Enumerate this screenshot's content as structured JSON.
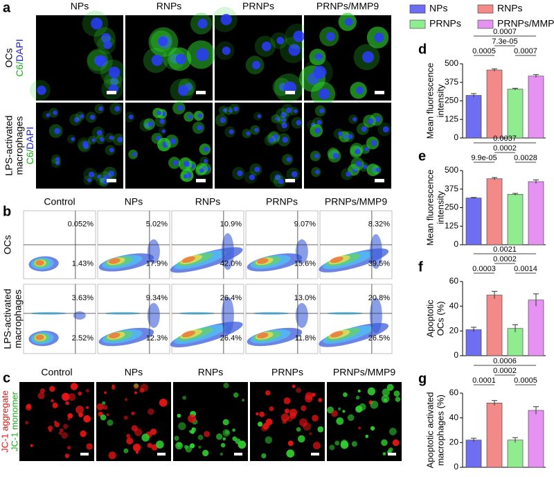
{
  "legend": {
    "items": [
      {
        "name": "NPs",
        "color": "#6e6ef2"
      },
      {
        "name": "RNPs",
        "color": "#f28a8a"
      },
      {
        "name": "PRNPs",
        "color": "#8fec8f"
      },
      {
        "name": "PRNPs/MMP9",
        "color": "#e592f2"
      }
    ]
  },
  "panel_a": {
    "label": "a",
    "columns": [
      "NPs",
      "RNPs",
      "PRNPs",
      "PRNPs/MMP9"
    ],
    "rows": [
      {
        "lines": [
          "OCs"
        ],
        "stain": {
          "green": "C6/",
          "blue": "DAPI"
        }
      },
      {
        "lines": [
          "LPS-activated",
          "macrophages"
        ],
        "stain": {
          "green": "C6/",
          "blue": "DAPI"
        }
      }
    ]
  },
  "panel_b": {
    "label": "b",
    "columns": [
      "Control",
      "NPs",
      "RNPs",
      "PRNPs",
      "PRNPs/MMP9"
    ],
    "rows": [
      {
        "lines": [
          "OCs"
        ],
        "plots": [
          {
            "q2": "0.052%",
            "q3": "1.43%"
          },
          {
            "q2": "5.02%",
            "q3": "17.9%"
          },
          {
            "q2": "10.9%",
            "q3": "42.0%"
          },
          {
            "q2": "9.07%",
            "q3": "15.6%"
          },
          {
            "q2": "8.32%",
            "q3": "39.5%"
          }
        ]
      },
      {
        "lines": [
          "LPS-activated",
          "macrophages"
        ],
        "plots": [
          {
            "q2": "3.63%",
            "q3": "2.52%"
          },
          {
            "q2": "9.34%",
            "q3": "12.3%"
          },
          {
            "q2": "26.4%",
            "q3": "26.4%"
          },
          {
            "q2": "13.0%",
            "q3": "11.8%"
          },
          {
            "q2": "20.8%",
            "q3": "26.5%"
          }
        ]
      }
    ]
  },
  "panel_c": {
    "label": "c",
    "columns": [
      "Control",
      "NPs",
      "RNPs",
      "PRNPs",
      "PRNPs/MMP9"
    ],
    "ylabel": {
      "red": "JC-1 aggregate",
      "green": "JC-1 monomer"
    }
  },
  "chart_data": [
    {
      "type": "bar",
      "panel": "d",
      "ylabel": [
        "Mean fluorescence",
        "intensity"
      ],
      "values": [
        287,
        458,
        329,
        417
      ],
      "errors": [
        12,
        8,
        6,
        10
      ],
      "ylim": [
        0,
        500
      ],
      "yticks": [
        0,
        125,
        250,
        375,
        500
      ],
      "comparisons": [
        {
          "bars": [
            0,
            1
          ],
          "label": "0.0005"
        },
        {
          "bars": [
            2,
            3
          ],
          "label": "0.0007"
        },
        {
          "bars": [
            1,
            2
          ],
          "label": "7.3e-05"
        },
        {
          "bars": [
            0,
            3
          ],
          "label": "0.0007"
        }
      ]
    },
    {
      "type": "bar",
      "panel": "e",
      "ylabel": [
        "Mean fluorescence",
        "intensity"
      ],
      "values": [
        315,
        445,
        340,
        425
      ],
      "errors": [
        4,
        8,
        6,
        12
      ],
      "ylim": [
        0,
        500
      ],
      "yticks": [
        0,
        125,
        250,
        375,
        500
      ],
      "comparisons": [
        {
          "bars": [
            0,
            1
          ],
          "label": "9.9e-05"
        },
        {
          "bars": [
            2,
            3
          ],
          "label": "0.0028"
        },
        {
          "bars": [
            1,
            2
          ],
          "label": "0.0002"
        },
        {
          "bars": [
            0,
            3
          ],
          "label": "0.0037"
        }
      ]
    },
    {
      "type": "bar",
      "panel": "f",
      "ylabel": [
        "Apoptotic",
        "OCs (%)"
      ],
      "values": [
        21,
        49,
        22,
        45
      ],
      "errors": [
        2,
        3,
        3,
        5
      ],
      "ylim": [
        0,
        60
      ],
      "yticks": [
        0,
        20,
        40,
        60
      ],
      "comparisons": [
        {
          "bars": [
            0,
            1
          ],
          "label": "0.0003"
        },
        {
          "bars": [
            2,
            3
          ],
          "label": "0.0014"
        },
        {
          "bars": [
            1,
            2
          ],
          "label": "0.0002"
        },
        {
          "bars": [
            0,
            3
          ],
          "label": "0.0021"
        }
      ]
    },
    {
      "type": "bar",
      "panel": "g",
      "ylabel": [
        "Apoptotic activated",
        "macrophages (%)"
      ],
      "values": [
        22,
        52,
        22,
        46
      ],
      "errors": [
        1.5,
        2,
        2,
        3
      ],
      "ylim": [
        0,
        60
      ],
      "yticks": [
        0,
        20,
        40,
        60
      ],
      "comparisons": [
        {
          "bars": [
            0,
            1
          ],
          "label": "0.0001"
        },
        {
          "bars": [
            2,
            3
          ],
          "label": "0.0005"
        },
        {
          "bars": [
            1,
            2
          ],
          "label": "0.0002"
        },
        {
          "bars": [
            0,
            3
          ],
          "label": "0.0006"
        }
      ]
    }
  ]
}
